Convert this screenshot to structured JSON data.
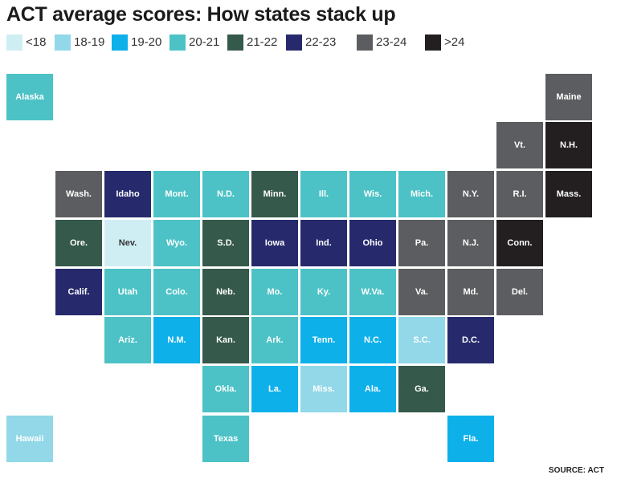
{
  "title": "ACT average scores: How states stack up",
  "legend": [
    {
      "label": "<18",
      "color": "#cfeef4"
    },
    {
      "label": "18-19",
      "color": "#92d8e8"
    },
    {
      "label": "19-20",
      "color": "#0eb0ea"
    },
    {
      "label": "20-21",
      "color": "#4cc2c6"
    },
    {
      "label": "21-22",
      "color": "#35594a"
    },
    {
      "label": "22-23",
      "color": "#262a6c"
    },
    {
      "label": "23-24",
      "color": "#5c5d60"
    },
    {
      "label": ">24",
      "color": "#231f20"
    }
  ],
  "states": [
    {
      "name": "Alaska",
      "bin": "20-21",
      "row": 0,
      "col": 0
    },
    {
      "name": "Maine",
      "bin": "23-24",
      "row": 0,
      "col": 11
    },
    {
      "name": "Vt.",
      "bin": "23-24",
      "row": 1,
      "col": 10
    },
    {
      "name": "N.H.",
      "bin": ">24",
      "row": 1,
      "col": 11
    },
    {
      "name": "Wash.",
      "bin": "23-24",
      "row": 2,
      "col": 1
    },
    {
      "name": "Idaho",
      "bin": "22-23",
      "row": 2,
      "col": 2
    },
    {
      "name": "Mont.",
      "bin": "20-21",
      "row": 2,
      "col": 3
    },
    {
      "name": "N.D.",
      "bin": "20-21",
      "row": 2,
      "col": 4
    },
    {
      "name": "Minn.",
      "bin": "21-22",
      "row": 2,
      "col": 5
    },
    {
      "name": "Ill.",
      "bin": "20-21",
      "row": 2,
      "col": 6
    },
    {
      "name": "Wis.",
      "bin": "20-21",
      "row": 2,
      "col": 7
    },
    {
      "name": "Mich.",
      "bin": "20-21",
      "row": 2,
      "col": 8
    },
    {
      "name": "N.Y.",
      "bin": "23-24",
      "row": 2,
      "col": 9
    },
    {
      "name": "R.I.",
      "bin": "23-24",
      "row": 2,
      "col": 10
    },
    {
      "name": "Mass.",
      "bin": ">24",
      "row": 2,
      "col": 11
    },
    {
      "name": "Ore.",
      "bin": "21-22",
      "row": 3,
      "col": 1
    },
    {
      "name": "Nev.",
      "bin": "<18",
      "row": 3,
      "col": 2
    },
    {
      "name": "Wyo.",
      "bin": "20-21",
      "row": 3,
      "col": 3
    },
    {
      "name": "S.D.",
      "bin": "21-22",
      "row": 3,
      "col": 4
    },
    {
      "name": "Iowa",
      "bin": "22-23",
      "row": 3,
      "col": 5
    },
    {
      "name": "Ind.",
      "bin": "22-23",
      "row": 3,
      "col": 6
    },
    {
      "name": "Ohio",
      "bin": "22-23",
      "row": 3,
      "col": 7
    },
    {
      "name": "Pa.",
      "bin": "23-24",
      "row": 3,
      "col": 8
    },
    {
      "name": "N.J.",
      "bin": "23-24",
      "row": 3,
      "col": 9
    },
    {
      "name": "Conn.",
      "bin": ">24",
      "row": 3,
      "col": 10
    },
    {
      "name": "Calif.",
      "bin": "22-23",
      "row": 4,
      "col": 1
    },
    {
      "name": "Utah",
      "bin": "20-21",
      "row": 4,
      "col": 2
    },
    {
      "name": "Colo.",
      "bin": "20-21",
      "row": 4,
      "col": 3
    },
    {
      "name": "Neb.",
      "bin": "21-22",
      "row": 4,
      "col": 4
    },
    {
      "name": "Mo.",
      "bin": "20-21",
      "row": 4,
      "col": 5
    },
    {
      "name": "Ky.",
      "bin": "20-21",
      "row": 4,
      "col": 6
    },
    {
      "name": "W.Va.",
      "bin": "20-21",
      "row": 4,
      "col": 7
    },
    {
      "name": "Va.",
      "bin": "23-24",
      "row": 4,
      "col": 8
    },
    {
      "name": "Md.",
      "bin": "23-24",
      "row": 4,
      "col": 9
    },
    {
      "name": "Del.",
      "bin": "23-24",
      "row": 4,
      "col": 10
    },
    {
      "name": "Ariz.",
      "bin": "20-21",
      "row": 5,
      "col": 2
    },
    {
      "name": "N.M.",
      "bin": "19-20",
      "row": 5,
      "col": 3
    },
    {
      "name": "Kan.",
      "bin": "21-22",
      "row": 5,
      "col": 4
    },
    {
      "name": "Ark.",
      "bin": "20-21",
      "row": 5,
      "col": 5
    },
    {
      "name": "Tenn.",
      "bin": "19-20",
      "row": 5,
      "col": 6
    },
    {
      "name": "N.C.",
      "bin": "19-20",
      "row": 5,
      "col": 7
    },
    {
      "name": "S.C.",
      "bin": "18-19",
      "row": 5,
      "col": 8
    },
    {
      "name": "D.C.",
      "bin": "22-23",
      "row": 5,
      "col": 9
    },
    {
      "name": "Okla.",
      "bin": "20-21",
      "row": 6,
      "col": 4
    },
    {
      "name": "La.",
      "bin": "19-20",
      "row": 6,
      "col": 5
    },
    {
      "name": "Miss.",
      "bin": "18-19",
      "row": 6,
      "col": 6
    },
    {
      "name": "Ala.",
      "bin": "19-20",
      "row": 6,
      "col": 7
    },
    {
      "name": "Ga.",
      "bin": "21-22",
      "row": 6,
      "col": 8
    },
    {
      "name": "Hawaii",
      "bin": "18-19",
      "row": 7,
      "col": 0
    },
    {
      "name": "Texas",
      "bin": "20-21",
      "row": 7,
      "col": 4
    },
    {
      "name": "Fla.",
      "bin": "19-20",
      "row": 7,
      "col": 9
    }
  ],
  "source": {
    "prefix": "SOURCE: ",
    "name": "ACT"
  }
}
